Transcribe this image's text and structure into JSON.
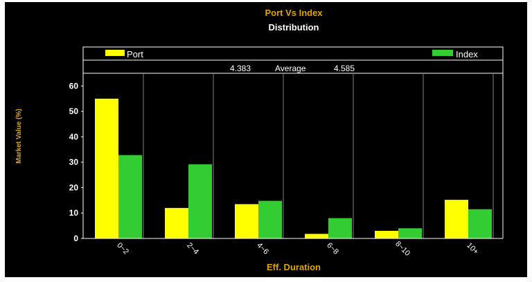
{
  "colors": {
    "background": "#000000",
    "title": "#e0a400",
    "subtitle": "#ffffff",
    "axis_label": "#e0a400",
    "port": "#ffff00",
    "index": "#33cc33",
    "text": "#ffffff"
  },
  "chart_data": {
    "type": "bar",
    "title": "Port Vs Index",
    "subtitle": "Distribution",
    "xlabel": "Eff. Duration",
    "ylabel": "Market Value (%)",
    "categories": [
      "0~2",
      "2~4",
      "4~6",
      "6~8",
      "8~10",
      "10+"
    ],
    "series": [
      {
        "name": "Port",
        "color": "#ffff00",
        "values": [
          55.0,
          12.0,
          13.5,
          1.8,
          3.0,
          15.2
        ]
      },
      {
        "name": "Index",
        "color": "#33cc33",
        "values": [
          32.8,
          29.2,
          14.8,
          8.0,
          4.0,
          11.5
        ]
      }
    ],
    "ylim": [
      0,
      65
    ],
    "yticks": [
      0,
      10,
      20,
      30,
      40,
      50,
      60
    ],
    "grid": "vertical",
    "legend": "top",
    "average": {
      "label": "Average",
      "port": "4.383",
      "index": "4.585"
    }
  }
}
